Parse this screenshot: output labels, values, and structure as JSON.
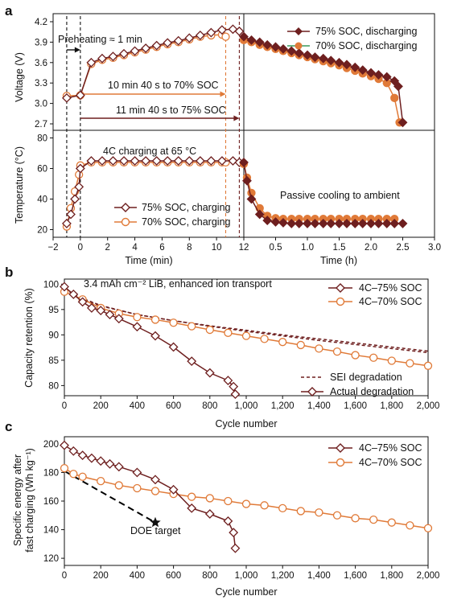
{
  "colors": {
    "dark": "#6e1f1f",
    "orange": "#e07a38",
    "marker_fill": "#ffffff",
    "axis": "#111111",
    "doe": "#000000"
  },
  "panel_a": {
    "label": "a",
    "voltage_ylabel": "Voltage (V)",
    "temperature_ylabel": "Temperature (°C)",
    "xlabel_min": "Time (min)",
    "xlabel_h": "Time (h)",
    "annotations": {
      "preheat": "Preheating ≈ 1 min",
      "to70": "10 min 40 s to 70% SOC",
      "to75": "11 min 40 s to 75% SOC",
      "charging": "4C charging at 65 °C",
      "cooling": "Passive cooling to ambient"
    },
    "legend_discharge": [
      "75% SOC, discharging",
      "70% SOC, discharging"
    ],
    "legend_charge": [
      "75% SOC, charging",
      "70% SOC, charging"
    ]
  },
  "panel_b": {
    "label": "b",
    "ylabel": "Capacity retention (%)",
    "xlabel": "Cycle number",
    "note": "3.4 mAh cm⁻² LiB, enhanced ion transport",
    "legend_series": [
      "4C–75% SOC",
      "4C–70% SOC"
    ],
    "legend_lines": [
      "SEI degradation",
      "Actual degradation"
    ]
  },
  "panel_c": {
    "label": "c",
    "ylabel1": "Specific energy after",
    "ylabel2": "fast charging (Wh kg⁻¹)",
    "xlabel": "Cycle number",
    "doe": "DOE target",
    "legend_series": [
      "4C–75% SOC",
      "4C–70% SOC"
    ]
  },
  "chart_data": [
    {
      "type": "line",
      "title": "",
      "xlabel": "Time (min)",
      "ylabel": "Voltage (V)",
      "xlim": [
        -2,
        12
      ],
      "ylim": [
        2.7,
        4.2
      ],
      "x_ticks": [
        -2,
        0,
        2,
        4,
        6,
        8,
        10,
        12
      ],
      "y_ticks": [
        2.7,
        3.0,
        3.3,
        3.6,
        3.9,
        4.2
      ],
      "series": [
        {
          "name": "75% SOC, charging",
          "x": [
            -1,
            0,
            0.8,
            1.6,
            2.4,
            3.2,
            4,
            4.8,
            5.6,
            6.4,
            7.2,
            8,
            8.8,
            9.6,
            10.4,
            11.2,
            11.67
          ],
          "y": [
            3.08,
            3.12,
            3.6,
            3.66,
            3.69,
            3.73,
            3.77,
            3.81,
            3.85,
            3.89,
            3.92,
            3.96,
            4.0,
            4.04,
            4.08,
            4.09,
            4.06
          ]
        },
        {
          "name": "70% SOC, charging",
          "x": [
            -1,
            0,
            0.8,
            1.6,
            2.4,
            3.2,
            4,
            4.8,
            5.6,
            6.4,
            7.2,
            8,
            8.8,
            9.6,
            10.4,
            10.67
          ],
          "y": [
            3.11,
            3.12,
            3.58,
            3.64,
            3.67,
            3.71,
            3.75,
            3.79,
            3.83,
            3.87,
            3.9,
            3.94,
            3.98,
            4.0,
            4.01,
            3.98
          ]
        }
      ]
    },
    {
      "type": "line",
      "title": "",
      "xlabel": "Time (h)",
      "ylabel": "Voltage (V)",
      "xlim": [
        0,
        3.0
      ],
      "ylim": [
        2.7,
        4.2
      ],
      "x_ticks": [
        0.5,
        1.0,
        1.5,
        2.0,
        2.5,
        3.0
      ],
      "series": [
        {
          "name": "75% SOC, discharging",
          "x": [
            0,
            0.12,
            0.25,
            0.37,
            0.5,
            0.62,
            0.75,
            0.87,
            1.0,
            1.12,
            1.25,
            1.37,
            1.5,
            1.62,
            1.75,
            1.87,
            2.0,
            2.12,
            2.25,
            2.37,
            2.43,
            2.5
          ],
          "y": [
            3.98,
            3.93,
            3.9,
            3.86,
            3.83,
            3.8,
            3.77,
            3.74,
            3.71,
            3.68,
            3.66,
            3.63,
            3.6,
            3.57,
            3.53,
            3.49,
            3.45,
            3.42,
            3.39,
            3.33,
            3.25,
            2.72
          ]
        },
        {
          "name": "70% SOC, discharging",
          "x": [
            0,
            0.12,
            0.25,
            0.37,
            0.5,
            0.62,
            0.75,
            0.87,
            1.0,
            1.12,
            1.25,
            1.37,
            1.5,
            1.62,
            1.75,
            1.87,
            2.0,
            2.12,
            2.25,
            2.37,
            2.45
          ],
          "y": [
            3.93,
            3.9,
            3.86,
            3.83,
            3.8,
            3.77,
            3.74,
            3.71,
            3.68,
            3.65,
            3.62,
            3.59,
            3.56,
            3.52,
            3.48,
            3.44,
            3.4,
            3.36,
            3.3,
            3.08,
            2.72
          ]
        }
      ]
    },
    {
      "type": "line",
      "title": "",
      "xlabel": "Time (min)",
      "ylabel": "Temperature (°C)",
      "xlim": [
        -2,
        12
      ],
      "ylim": [
        15,
        85
      ],
      "y_ticks": [
        20,
        40,
        60,
        80
      ],
      "series": [
        {
          "name": "75% SOC, charging",
          "x": [
            -1,
            -0.7,
            -0.4,
            -0.1,
            0,
            0.8,
            1.6,
            2.4,
            3.2,
            4,
            4.8,
            5.6,
            6.4,
            7.2,
            8,
            8.8,
            9.6,
            10.4,
            11.2,
            11.67
          ],
          "y": [
            24,
            30,
            40,
            48,
            60,
            65,
            65,
            65,
            65,
            65,
            65,
            65,
            65,
            65,
            65,
            65,
            65,
            65,
            65,
            64
          ]
        },
        {
          "name": "70% SOC, charging",
          "x": [
            -1,
            -0.7,
            -0.4,
            -0.1,
            0,
            0.8,
            1.6,
            2.4,
            3.2,
            4,
            4.8,
            5.6,
            6.4,
            7.2,
            8,
            8.8,
            9.6,
            10.4,
            10.67
          ],
          "y": [
            22,
            34,
            45,
            56,
            62,
            64,
            64,
            64,
            64,
            64,
            64,
            64,
            64,
            64,
            64,
            64,
            64,
            64,
            64
          ]
        }
      ]
    },
    {
      "type": "line",
      "title": "",
      "xlabel": "Time (h)",
      "ylabel": "Temperature (°C)",
      "xlim": [
        0,
        3.0
      ],
      "ylim": [
        15,
        85
      ],
      "series": [
        {
          "name": "75% SOC",
          "x": [
            0,
            0.05,
            0.12,
            0.25,
            0.37,
            0.5,
            0.62,
            0.75,
            0.87,
            1.0,
            1.12,
            1.25,
            1.37,
            1.5,
            1.62,
            1.75,
            1.87,
            2.0,
            2.12,
            2.25,
            2.37,
            2.5
          ],
          "y": [
            64,
            52,
            40,
            30,
            26,
            25,
            24.5,
            24,
            24,
            24,
            24,
            24,
            24,
            24,
            24,
            24,
            24,
            24,
            24,
            24,
            24,
            24
          ]
        },
        {
          "name": "70% SOC",
          "x": [
            0,
            0.05,
            0.12,
            0.25,
            0.37,
            0.5,
            0.62,
            0.75,
            0.87,
            1.0,
            1.12,
            1.25,
            1.37,
            1.5,
            1.62,
            1.75,
            1.87,
            2.0,
            2.12,
            2.25,
            2.37
          ],
          "y": [
            63,
            54,
            44,
            34,
            29,
            27.5,
            27,
            27,
            27,
            27,
            27,
            27,
            27,
            27,
            27,
            27,
            27,
            27,
            27,
            27,
            27
          ]
        }
      ]
    },
    {
      "type": "line",
      "title": "",
      "xlabel": "Cycle number",
      "ylabel": "Capacity retention (%)",
      "xlim": [
        0,
        2000
      ],
      "ylim": [
        78,
        101
      ],
      "x_ticks": [
        0,
        200,
        400,
        600,
        800,
        1000,
        1200,
        1400,
        1600,
        1800,
        2000
      ],
      "y_ticks": [
        80,
        85,
        90,
        95,
        100
      ],
      "series": [
        {
          "name": "4C–75% SOC",
          "x": [
            0,
            50,
            100,
            150,
            200,
            250,
            300,
            400,
            500,
            600,
            700,
            800,
            900,
            930,
            940
          ],
          "y": [
            99.5,
            98.0,
            96.5,
            95.3,
            94.8,
            94.0,
            93.2,
            91.6,
            89.8,
            87.6,
            84.8,
            82.5,
            81.0,
            79.8,
            78.3
          ]
        },
        {
          "name": "4C–70% SOC",
          "x": [
            0,
            100,
            200,
            300,
            400,
            500,
            600,
            700,
            800,
            900,
            1000,
            1100,
            1200,
            1300,
            1400,
            1500,
            1600,
            1700,
            1800,
            1900,
            2000
          ],
          "y": [
            98.5,
            97.0,
            95.3,
            94.2,
            93.5,
            93.0,
            92.4,
            91.7,
            91.0,
            90.4,
            89.8,
            89.2,
            88.6,
            88.0,
            87.3,
            86.7,
            86.0,
            85.5,
            84.9,
            84.4,
            83.9
          ]
        },
        {
          "name": "SEI degradation (75% SOC)",
          "x": [
            0,
            100,
            200,
            400,
            600,
            800,
            1000,
            1200,
            1400,
            1600,
            1800,
            2000
          ],
          "y": [
            99.0,
            97.2,
            95.8,
            94.0,
            92.8,
            91.7,
            90.7,
            89.8,
            88.9,
            88.1,
            87.3,
            86.5
          ]
        },
        {
          "name": "SEI degradation (70% SOC)",
          "x": [
            0,
            100,
            200,
            400,
            600,
            800,
            1000,
            1200,
            1400,
            1600,
            1800,
            2000
          ],
          "y": [
            98.5,
            97.0,
            95.7,
            94.0,
            92.8,
            91.8,
            90.9,
            90.0,
            89.2,
            88.4,
            87.6,
            86.8
          ]
        }
      ]
    },
    {
      "type": "line",
      "title": "",
      "xlabel": "Cycle number",
      "ylabel": "Specific energy after fast charging (Wh kg⁻¹)",
      "xlim": [
        0,
        2000
      ],
      "ylim": [
        115,
        205
      ],
      "x_ticks": [
        0,
        200,
        400,
        600,
        800,
        1000,
        1200,
        1400,
        1600,
        1800,
        2000
      ],
      "y_ticks": [
        120,
        140,
        160,
        180,
        200
      ],
      "series": [
        {
          "name": "4C–75% SOC",
          "x": [
            0,
            50,
            100,
            150,
            200,
            250,
            300,
            400,
            500,
            600,
            700,
            800,
            900,
            930,
            940
          ],
          "y": [
            199,
            195,
            192,
            190,
            188,
            186,
            184,
            180,
            175,
            168,
            155,
            151,
            146,
            138,
            127
          ]
        },
        {
          "name": "4C–70% SOC",
          "x": [
            0,
            50,
            100,
            200,
            300,
            400,
            500,
            600,
            700,
            800,
            900,
            1000,
            1100,
            1200,
            1300,
            1400,
            1500,
            1600,
            1700,
            1800,
            1900,
            2000
          ],
          "y": [
            183,
            179,
            177,
            174,
            171,
            169,
            167,
            165,
            163,
            162,
            160,
            158,
            157,
            155,
            153,
            152,
            150,
            148,
            147,
            145,
            143,
            141
          ]
        },
        {
          "name": "DOE trend",
          "x": [
            0,
            500
          ],
          "y": [
            181,
            145
          ]
        }
      ],
      "doe_target": {
        "x": 500,
        "y": 145
      }
    }
  ]
}
